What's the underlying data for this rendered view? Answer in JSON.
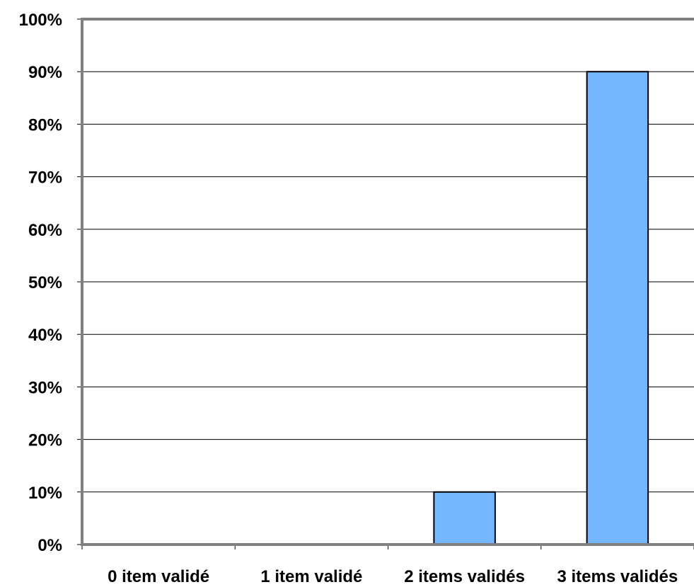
{
  "chart_data": {
    "type": "bar",
    "title": "",
    "xlabel": "",
    "ylabel": "",
    "categories": [
      "0 item validé",
      "1 item validé",
      "2 items validés",
      "3 items validés"
    ],
    "values": [
      0,
      0,
      10,
      90
    ],
    "y_unit": "%",
    "ylim": [
      0,
      100
    ],
    "y_ticks": [
      0,
      10,
      20,
      30,
      40,
      50,
      60,
      70,
      80,
      90,
      100
    ],
    "y_tick_labels": [
      "0%",
      "10%",
      "20%",
      "30%",
      "40%",
      "50%",
      "60%",
      "70%",
      "80%",
      "90%",
      "100%"
    ],
    "grid": true,
    "legend": "none",
    "colors": {
      "bar_fill": "#74b6ff",
      "bar_stroke": "#000000",
      "axis": "#808080",
      "gridline": "#000000"
    }
  }
}
